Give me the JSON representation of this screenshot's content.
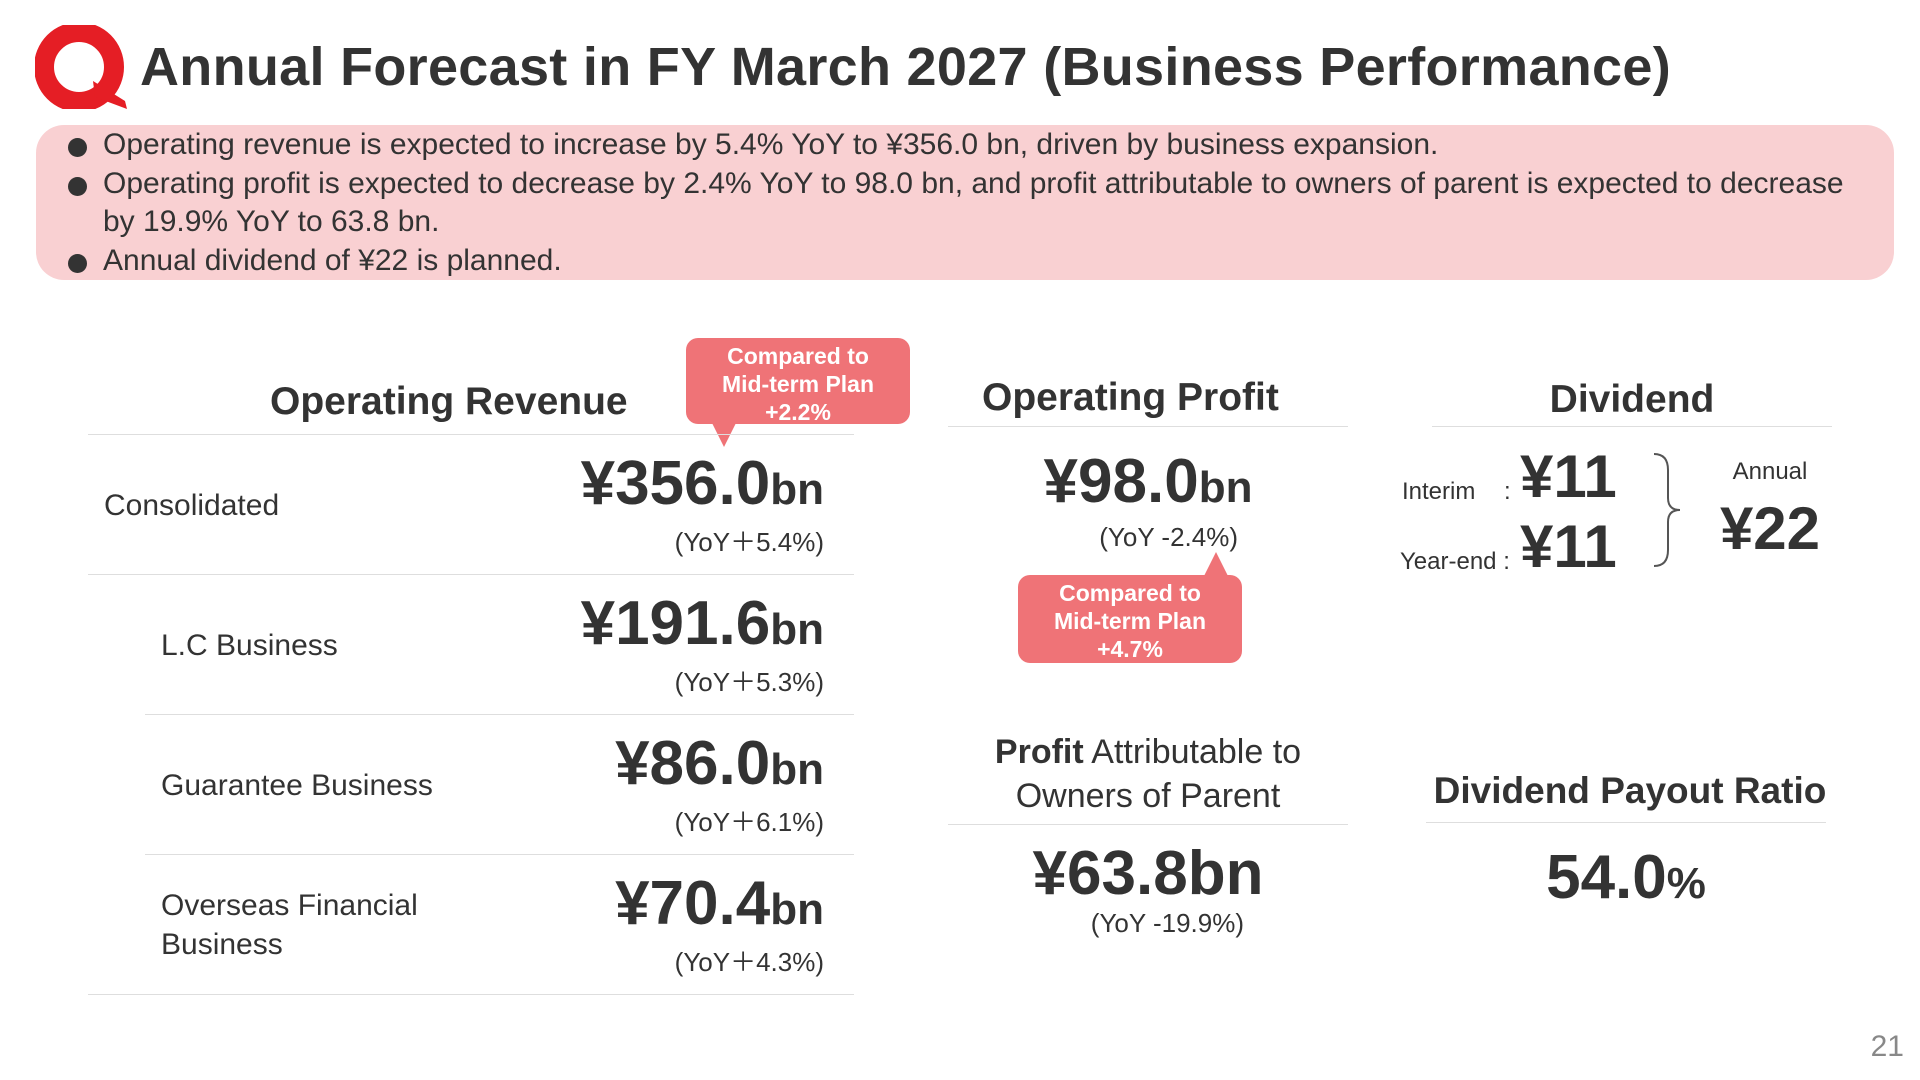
{
  "header": {
    "title": "Annual Forecast in FY March 2027 (Business Performance)",
    "logo_color": "#e51e25"
  },
  "summary": {
    "bullets": [
      "Operating revenue is expected to increase by 5.4% YoY to ¥356.0 bn, driven by business expansion.",
      "Operating profit is expected to decrease by 2.4% YoY to 98.0 bn, and profit attributable to owners of parent is expected to decrease by 19.9% YoY to 63.8 bn.",
      "Annual dividend of ¥22 is planned."
    ],
    "background": "#f9d0d2"
  },
  "revenue": {
    "heading": "Operating Revenue",
    "callout": {
      "line1": "Compared to",
      "line2": "Mid-term Plan",
      "line3": "+2.2%"
    },
    "rows": [
      {
        "label": "Consolidated",
        "value": "¥356.0",
        "unit": "bn",
        "yoy": "(YoY＋5.4%)"
      },
      {
        "label": "L.C Business",
        "value": "¥191.6",
        "unit": "bn",
        "yoy": "(YoY＋5.3%)"
      },
      {
        "label": "Guarantee Business",
        "value": "¥86.0",
        "unit": "bn",
        "yoy": "(YoY＋6.1%)"
      },
      {
        "label": "Overseas Financial Business",
        "value": "¥70.4",
        "unit": "bn",
        "yoy": "(YoY＋4.3%)"
      }
    ]
  },
  "profit": {
    "heading": "Operating Profit",
    "value": "¥98.0",
    "unit": "bn",
    "yoy": "(YoY -2.4%)",
    "callout": {
      "line1": "Compared to",
      "line2": "Mid-term Plan",
      "line3": "+4.7%"
    }
  },
  "attributable": {
    "heading_bold": "Profit",
    "heading_rest": " Attributable to",
    "heading_line2": "Owners of Parent",
    "value": "¥63.8bn",
    "yoy": "(YoY -19.9%)"
  },
  "dividend": {
    "heading": "Dividend",
    "interim_label": "Interim",
    "interim_sep": ":",
    "interim_value": "¥11",
    "yearend_label": "Year-end :",
    "yearend_value": "¥11",
    "annual_label": "Annual",
    "annual_value": "¥22"
  },
  "payout": {
    "heading": "Dividend Payout Ratio",
    "value": "54.0",
    "unit": "%"
  },
  "page_number": "21",
  "accent_color": "#ef7377"
}
